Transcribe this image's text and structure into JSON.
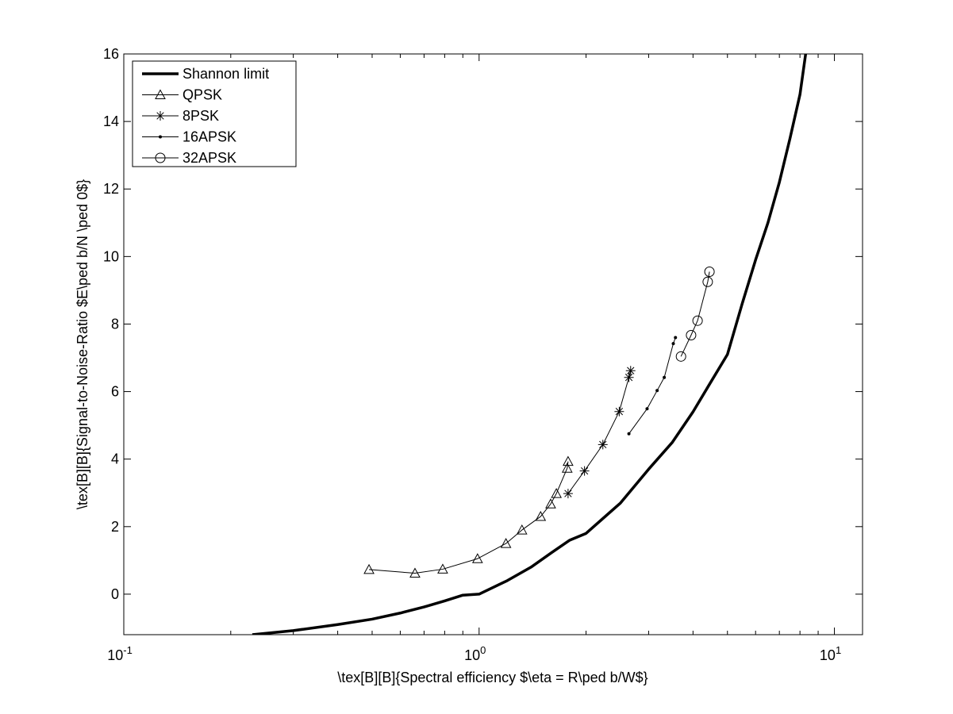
{
  "chart_data": {
    "type": "line",
    "title": "",
    "xlabel": "\\tex[B][B]{Spectral efficiency $\\eta = R\\ped b/W$}",
    "ylabel": "\\tex[B][B]{Signal-to-Noise-Ratio $E\\ped b/N \\ped 0$}",
    "xscale": "log",
    "xlim": [
      0.1,
      12
    ],
    "ylim": [
      -1.2,
      16
    ],
    "x_ticks": [
      {
        "value": 0.1,
        "base": "10",
        "exp": "-1"
      },
      {
        "value": 1,
        "base": "10",
        "exp": "0"
      },
      {
        "value": 10,
        "base": "10",
        "exp": "1"
      }
    ],
    "y_ticks": [
      "0",
      "2",
      "4",
      "6",
      "8",
      "10",
      "12",
      "14",
      "16"
    ],
    "grid": false,
    "legend_position": "top-left",
    "series": [
      {
        "name": "Shannon limit",
        "marker": "none",
        "line_width": "thick",
        "x": [
          0.23,
          0.3,
          0.4,
          0.5,
          0.6,
          0.7,
          0.8,
          0.9,
          1.0,
          1.2,
          1.4,
          1.6,
          1.8,
          2.0,
          2.5,
          3.0,
          3.5,
          4.0,
          4.5,
          5.0,
          5.5,
          6.0,
          6.5,
          7.0,
          7.5,
          8.0,
          8.3
        ],
        "y": [
          -1.2,
          -1.08,
          -0.9,
          -0.74,
          -0.56,
          -0.38,
          -0.2,
          -0.03,
          0.0,
          0.4,
          0.8,
          1.23,
          1.6,
          1.8,
          2.7,
          3.7,
          4.5,
          5.4,
          6.3,
          7.1,
          8.6,
          9.9,
          11.0,
          12.2,
          13.5,
          14.8,
          16.0
        ]
      },
      {
        "name": "QPSK",
        "marker": "triangle",
        "x": [
          0.49,
          0.66,
          0.79,
          0.99,
          1.19,
          1.32,
          1.49,
          1.59,
          1.65,
          1.77,
          1.78
        ],
        "y": [
          0.73,
          0.62,
          0.74,
          1.05,
          1.5,
          1.9,
          2.3,
          2.67,
          2.98,
          3.73,
          3.93
        ]
      },
      {
        "name": "8PSK",
        "marker": "star",
        "x": [
          1.78,
          1.98,
          2.23,
          2.48,
          2.64,
          2.67
        ],
        "y": [
          2.98,
          3.65,
          4.43,
          5.41,
          6.42,
          6.62
        ]
      },
      {
        "name": "16APSK",
        "marker": "dot",
        "x": [
          2.64,
          2.97,
          3.17,
          3.32,
          3.52,
          3.57
        ],
        "y": [
          4.75,
          5.49,
          6.03,
          6.42,
          7.42,
          7.6
        ]
      },
      {
        "name": "32APSK",
        "marker": "circle",
        "x": [
          3.7,
          3.95,
          4.12,
          4.4,
          4.45
        ],
        "y": [
          7.04,
          7.67,
          8.1,
          9.25,
          9.55
        ]
      }
    ]
  }
}
